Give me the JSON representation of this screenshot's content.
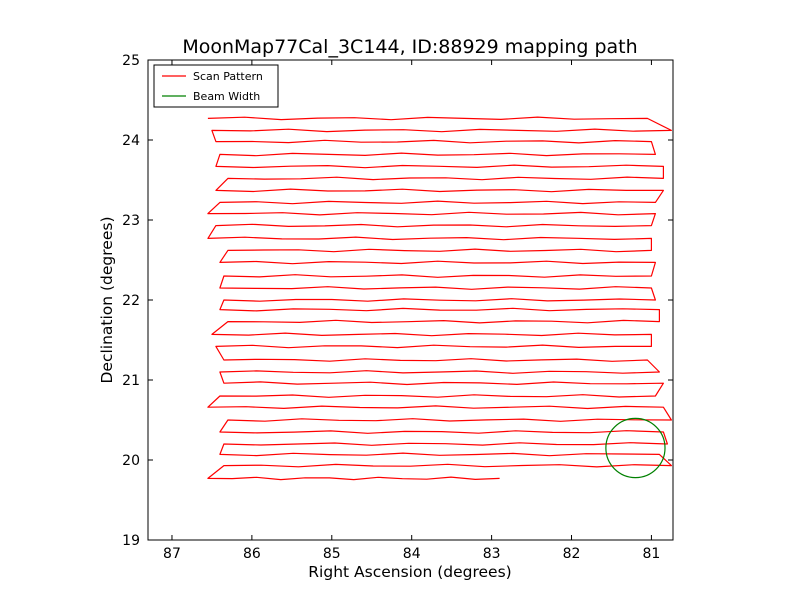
{
  "chart_data": {
    "type": "line",
    "title": "MoonMap77Cal_3C144, ID:88929 mapping path",
    "xlabel": "Right Ascension (degrees)",
    "ylabel": "Declination (degrees)",
    "xlim": [
      87.3,
      80.73
    ],
    "ylim": [
      19,
      25
    ],
    "x_ticks": [
      87,
      86,
      85,
      84,
      83,
      82,
      81
    ],
    "y_ticks": [
      19,
      20,
      21,
      22,
      23,
      24,
      25
    ],
    "x_tick_labels": [
      "87",
      "86",
      "85",
      "84",
      "83",
      "82",
      "81"
    ],
    "y_tick_labels": [
      "19",
      "20",
      "21",
      "22",
      "23",
      "24",
      "25"
    ],
    "grid": false,
    "legend_position": "top-left",
    "series": [
      {
        "name": "Scan Pattern",
        "color": "#ff0000",
        "rows": [
          {
            "west": 86.55,
            "east": 82.9,
            "y": 19.77
          },
          {
            "west": 86.35,
            "east": 80.75,
            "y": 19.93
          },
          {
            "west": 86.4,
            "east": 80.9,
            "y": 20.07
          },
          {
            "west": 86.35,
            "east": 80.8,
            "y": 20.2
          },
          {
            "west": 86.4,
            "east": 80.85,
            "y": 20.35
          },
          {
            "west": 86.3,
            "east": 80.75,
            "y": 20.5
          },
          {
            "west": 86.55,
            "east": 80.85,
            "y": 20.66
          },
          {
            "west": 86.4,
            "east": 80.95,
            "y": 20.8
          },
          {
            "west": 86.35,
            "east": 80.85,
            "y": 20.96
          },
          {
            "west": 86.4,
            "east": 80.9,
            "y": 21.1
          },
          {
            "west": 86.35,
            "east": 81.05,
            "y": 21.25
          },
          {
            "west": 86.45,
            "east": 81.0,
            "y": 21.42
          },
          {
            "west": 86.5,
            "east": 81.0,
            "y": 21.57
          },
          {
            "west": 86.3,
            "east": 80.9,
            "y": 21.73
          },
          {
            "west": 86.4,
            "east": 80.9,
            "y": 21.88
          },
          {
            "west": 86.35,
            "east": 80.95,
            "y": 22.0
          },
          {
            "west": 86.4,
            "east": 81.0,
            "y": 22.15
          },
          {
            "west": 86.35,
            "east": 81.0,
            "y": 22.3
          },
          {
            "west": 86.4,
            "east": 80.95,
            "y": 22.47
          },
          {
            "west": 86.3,
            "east": 81.0,
            "y": 22.62
          },
          {
            "west": 86.55,
            "east": 81.0,
            "y": 22.77
          },
          {
            "west": 86.45,
            "east": 81.0,
            "y": 22.93
          },
          {
            "west": 86.55,
            "east": 80.95,
            "y": 23.08
          },
          {
            "west": 86.4,
            "east": 80.95,
            "y": 23.22
          },
          {
            "west": 86.45,
            "east": 80.85,
            "y": 23.37
          },
          {
            "west": 86.3,
            "east": 80.85,
            "y": 23.52
          },
          {
            "west": 86.45,
            "east": 80.85,
            "y": 23.67
          },
          {
            "west": 86.4,
            "east": 80.95,
            "y": 23.82
          },
          {
            "west": 86.45,
            "east": 81.0,
            "y": 23.98
          },
          {
            "west": 86.5,
            "east": 80.75,
            "y": 24.12
          },
          {
            "west": 86.55,
            "east": 81.05,
            "y": 24.27
          }
        ]
      },
      {
        "name": "Beam Width",
        "color": "#008000",
        "center": [
          81.2,
          20.15
        ],
        "radius_x": 0.37,
        "radius_y": 0.37
      }
    ]
  }
}
